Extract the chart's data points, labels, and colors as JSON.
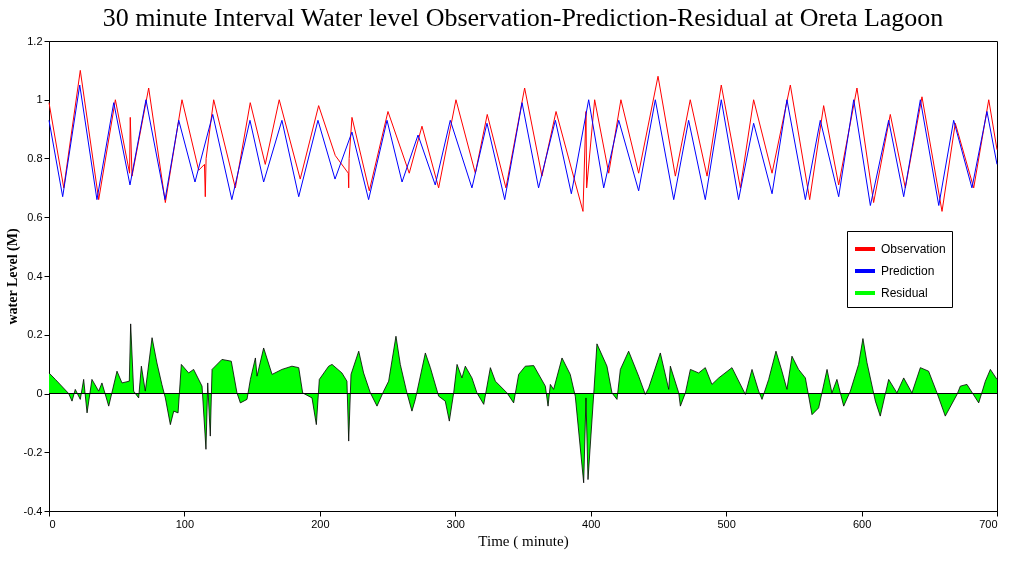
{
  "chart_data": {
    "type": "line",
    "title": "30 minute Interval Water level Observation-Prediction-Residual at Oreta Lagoon",
    "xlabel": "Time ( minute)",
    "ylabel": "water Level (M)",
    "xlim": [
      0,
      700
    ],
    "xticks": [
      0,
      100,
      200,
      300,
      400,
      500,
      600,
      700
    ],
    "ylim": [
      -0.4,
      1.2
    ],
    "yticks": [
      -0.4,
      -0.2,
      {
        "value": 0,
        "label": "0"
      },
      0.2,
      0.4,
      0.6,
      0.8,
      {
        "value": 1,
        "label": "1"
      },
      1.2
    ],
    "ref_lines": [
      {
        "axis": "y",
        "value": 0,
        "label": null,
        "color": "#000000"
      }
    ],
    "grid": false,
    "legend": "right",
    "line_style": "solid",
    "series": [
      {
        "name": "Observation",
        "type": "line",
        "color": "#ff0000",
        "x": [
          0,
          10.9,
          23.1,
          36.7,
          49,
          59.5,
          60,
          61.3,
          73.6,
          85.9,
          98.2,
          110.5,
          114.8,
          115.4,
          116,
          121.6,
          137.6,
          148.6,
          159.7,
          170,
          185.5,
          199.1,
          211.4,
          221,
          221.3,
          221.6,
          223.7,
          236.5,
          250.3,
          266,
          275.4,
          287.7,
          300.5,
          314.8,
          323.6,
          337.4,
          351.2,
          364,
          374.4,
          394.3,
          396.5,
          397,
          402.9,
          413.3,
          422.3,
          435.4,
          449.7,
          462.5,
          473.5,
          485.9,
          496.4,
          510.5,
          520.3,
          533.9,
          547.4,
          561.7,
          572,
          583.1,
          596.6,
          608.9,
          621.2,
          632.3,
          644.6,
          659.4,
          669.2,
          682.8,
          693.9,
          700
        ],
        "values": [
          0.99,
          0.7,
          1.1,
          0.66,
          1.0,
          0.75,
          0.94,
          0.74,
          1.04,
          0.65,
          1.0,
          0.76,
          0.78,
          0.67,
          0.8,
          1.0,
          0.7,
          0.99,
          0.78,
          1.0,
          0.73,
          0.98,
          0.81,
          0.75,
          0.7,
          0.8,
          0.94,
          0.69,
          0.96,
          0.75,
          0.91,
          0.7,
          1.0,
          0.75,
          0.95,
          0.7,
          1.04,
          0.74,
          0.96,
          0.62,
          0.96,
          0.7,
          1.0,
          0.75,
          1.0,
          0.75,
          1.08,
          0.74,
          1.0,
          0.74,
          1.05,
          0.7,
          1.0,
          0.75,
          1.05,
          0.66,
          0.98,
          0.71,
          1.04,
          0.65,
          0.95,
          0.7,
          1.01,
          0.62,
          0.92,
          0.7,
          1.0,
          0.83
        ]
      },
      {
        "name": "Prediction",
        "type": "line",
        "color": "#0000ff",
        "x": [
          0,
          10.1,
          22.7,
          35.4,
          47.8,
          59.8,
          71.6,
          85.7,
          95.8,
          107.8,
          120.9,
          135,
          148.4,
          158.5,
          172,
          184.4,
          198.6,
          211.2,
          223.7,
          236,
          249.6,
          260.7,
          272.5,
          285.2,
          296.3,
          312.3,
          323.4,
          336.5,
          349.3,
          361.5,
          373.9,
          385.7,
          398.5,
          409.6,
          420.7,
          435.4,
          447.7,
          461.3,
          472.3,
          484.6,
          496.4,
          509.2,
          520.3,
          533.9,
          544.9,
          558.5,
          569.5,
          583.1,
          594.2,
          606.5,
          620,
          631.1,
          643.4,
          657,
          668,
          681.5,
          692.6,
          700
        ],
        "values": [
          0.93,
          0.67,
          1.05,
          0.66,
          0.99,
          0.71,
          1.0,
          0.66,
          0.93,
          0.72,
          0.95,
          0.66,
          0.93,
          0.72,
          0.93,
          0.67,
          0.93,
          0.73,
          0.89,
          0.66,
          0.93,
          0.72,
          0.88,
          0.71,
          0.93,
          0.7,
          0.92,
          0.66,
          0.99,
          0.7,
          0.93,
          0.68,
          1.0,
          0.7,
          0.93,
          0.69,
          1.0,
          0.66,
          0.93,
          0.66,
          1.0,
          0.66,
          0.92,
          0.68,
          1.0,
          0.66,
          0.93,
          0.67,
          1.0,
          0.64,
          0.93,
          0.67,
          1.0,
          0.64,
          0.93,
          0.7,
          0.96,
          0.78
        ]
      },
      {
        "name": "Residual",
        "type": "area",
        "color": "#00ff00",
        "x": [
          0,
          4.7,
          14.5,
          17,
          19.4,
          23.1,
          25.6,
          28.1,
          31.7,
          36.7,
          39.1,
          44.1,
          50.2,
          53.9,
          59.3,
          60.3,
          62.5,
          66.2,
          68.2,
          71.1,
          76.1,
          79.7,
          83.4,
          85.9,
          89.6,
          92.1,
          95.3,
          97.7,
          103.1,
          106.8,
          113,
          115.9,
          117.2,
          119.1,
          120.4,
          127.7,
          134.6,
          138.8,
          141.3,
          146.2,
          148.7,
          152.4,
          153.6,
          158.5,
          164.7,
          172,
          179.4,
          184.4,
          187.3,
          194.2,
          197.4,
          199.6,
          206.5,
          209,
          216.3,
          220,
          221.3,
          223,
          228.7,
          232.3,
          237.3,
          242.2,
          247.1,
          250.8,
          256.2,
          259.4,
          264.3,
          268,
          270.5,
          277.9,
          281.6,
          287.7,
          292.6,
          295.6,
          298.8,
          301.3,
          304.9,
          307.4,
          312.3,
          316,
          321,
          325.9,
          329.6,
          338.2,
          343.1,
          346.8,
          351.7,
          357.9,
          366.5,
          368.5,
          370.2,
          372.6,
          378.8,
          384.9,
          388.6,
          394.8,
          396.5,
          398,
          402.2,
          404.6,
          412,
          415.7,
          419.4,
          421.9,
          428,
          435.4,
          440.3,
          442.8,
          451.4,
          457.6,
          458.8,
          465,
          466.2,
          469.9,
          473.6,
          479.7,
          484.6,
          489.5,
          494.5,
          504.3,
          514.2,
          519.1,
          524,
          526.5,
          531.4,
          536.8,
          541.2,
          544.9,
          548.6,
          553.5,
          558.5,
          563.4,
          568.3,
          574.5,
          578.1,
          581.8,
          586.8,
          591.7,
          597.8,
          601,
          604,
          610.2,
          613.8,
          620,
          626.1,
          631.1,
          637.2,
          643.4,
          649.5,
          655.7,
          661.8,
          670.5,
          672.9,
          677.8,
          686.5,
          691.4,
          695.1,
          700
        ],
        "values": [
          0.07,
          0.048,
          0.0,
          -0.026,
          0.014,
          -0.02,
          0.048,
          -0.066,
          0.048,
          0.008,
          0.036,
          -0.043,
          0.076,
          0.036,
          0.042,
          0.237,
          0.008,
          -0.015,
          0.093,
          0.008,
          0.19,
          0.104,
          0.03,
          -0.015,
          -0.106,
          -0.06,
          -0.066,
          0.099,
          0.07,
          0.082,
          0.025,
          -0.19,
          0.036,
          -0.145,
          0.082,
          0.116,
          0.11,
          0.002,
          -0.032,
          -0.02,
          0.048,
          0.121,
          0.059,
          0.155,
          0.065,
          0.082,
          0.093,
          0.088,
          0.002,
          -0.015,
          -0.106,
          0.048,
          0.093,
          0.099,
          0.07,
          0.042,
          -0.162,
          0.065,
          0.144,
          0.07,
          0.002,
          -0.043,
          0.008,
          0.042,
          0.195,
          0.099,
          0.002,
          -0.06,
          -0.02,
          0.138,
          0.088,
          -0.009,
          -0.026,
          -0.094,
          0.002,
          0.099,
          0.053,
          0.093,
          0.053,
          0.002,
          -0.037,
          0.088,
          0.042,
          0.002,
          -0.032,
          0.065,
          0.093,
          0.095,
          0.025,
          -0.043,
          0.031,
          0.014,
          0.121,
          0.065,
          -0.009,
          -0.304,
          -0.015,
          -0.293,
          -0.003,
          0.169,
          0.093,
          0.002,
          -0.02,
          0.082,
          0.144,
          0.059,
          -0.003,
          0.019,
          0.138,
          0.014,
          0.093,
          0.002,
          -0.043,
          0.002,
          0.082,
          0.07,
          0.088,
          0.031,
          0.053,
          0.088,
          -0.003,
          0.082,
          0.008,
          -0.02,
          0.048,
          0.144,
          0.076,
          0.014,
          0.127,
          0.082,
          0.053,
          -0.072,
          -0.049,
          0.082,
          0.002,
          0.048,
          -0.043,
          0.008,
          0.099,
          0.187,
          0.105,
          -0.026,
          -0.077,
          0.048,
          0.002,
          0.053,
          0.002,
          0.088,
          0.076,
          0.002,
          -0.077,
          -0.003,
          0.025,
          0.031,
          -0.032,
          0.042,
          0.082,
          0.048
        ]
      }
    ]
  }
}
